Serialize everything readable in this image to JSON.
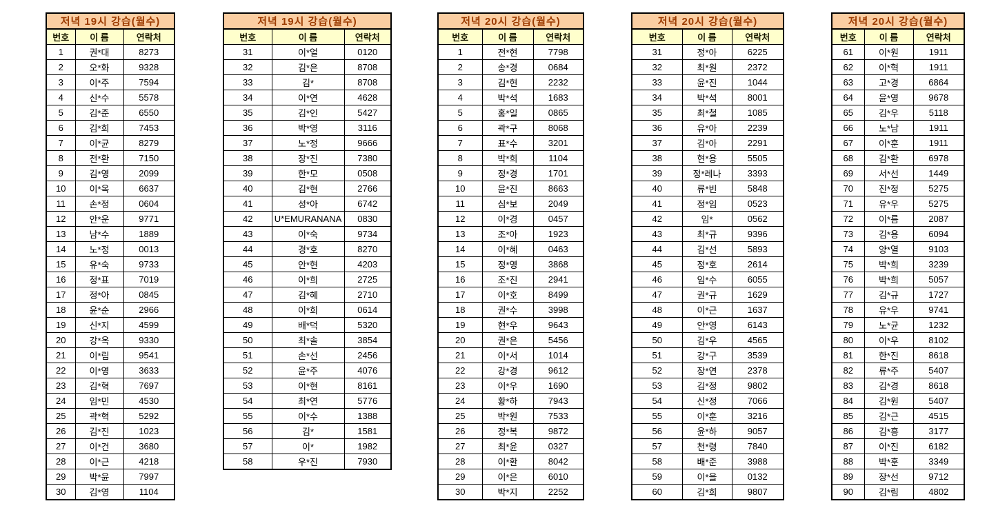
{
  "colors": {
    "title_bg": "#FBCEA2",
    "title_text": "#9C3B00",
    "header_bg": "#FFFFCC",
    "header_text": "#1A1A00",
    "cell_text": "#000000",
    "border": "#000000",
    "page_bg": "#FFFFFF"
  },
  "columns": [
    "번호",
    "이 름",
    "연락처"
  ],
  "tables": [
    {
      "title": "저녁 19시 강습(월수)",
      "rows": [
        [
          "1",
          "권*대",
          "8273"
        ],
        [
          "2",
          "오*화",
          "9328"
        ],
        [
          "3",
          "이*주",
          "7594"
        ],
        [
          "4",
          "신*수",
          "5578"
        ],
        [
          "5",
          "김*준",
          "6550"
        ],
        [
          "6",
          "김*희",
          "7453"
        ],
        [
          "7",
          "이*균",
          "8279"
        ],
        [
          "8",
          "전*환",
          "7150"
        ],
        [
          "9",
          "김*영",
          "2099"
        ],
        [
          "10",
          "이*옥",
          "6637"
        ],
        [
          "11",
          "손*정",
          "0604"
        ],
        [
          "12",
          "안*운",
          "9771"
        ],
        [
          "13",
          "남*수",
          "1889"
        ],
        [
          "14",
          "노*정",
          "0013"
        ],
        [
          "15",
          "유*숙",
          "9733"
        ],
        [
          "16",
          "정*표",
          "7019"
        ],
        [
          "17",
          "정*아",
          "0845"
        ],
        [
          "18",
          "윤*순",
          "2966"
        ],
        [
          "19",
          "신*지",
          "4599"
        ],
        [
          "20",
          "강*옥",
          "9330"
        ],
        [
          "21",
          "이*림",
          "9541"
        ],
        [
          "22",
          "이*영",
          "3633"
        ],
        [
          "23",
          "김*혁",
          "7697"
        ],
        [
          "24",
          "임*민",
          "4530"
        ],
        [
          "25",
          "곽*혁",
          "5292"
        ],
        [
          "26",
          "김*진",
          "1023"
        ],
        [
          "27",
          "이*건",
          "3680"
        ],
        [
          "28",
          "이*근",
          "4218"
        ],
        [
          "29",
          "박*윤",
          "7997"
        ],
        [
          "30",
          "김*영",
          "1104"
        ]
      ]
    },
    {
      "title": "저녁 19시 강습(월수)",
      "rows": [
        [
          "31",
          "이*얼",
          "0120"
        ],
        [
          "32",
          "김*은",
          "8708"
        ],
        [
          "33",
          "김*",
          "8708"
        ],
        [
          "34",
          "이*연",
          "4628"
        ],
        [
          "35",
          "김*인",
          "5427"
        ],
        [
          "36",
          "박*영",
          "3116"
        ],
        [
          "37",
          "노*정",
          "9666"
        ],
        [
          "38",
          "장*진",
          "7380"
        ],
        [
          "39",
          "한*모",
          "0508"
        ],
        [
          "40",
          "김*현",
          "2766"
        ],
        [
          "41",
          "성*아",
          "6742"
        ],
        [
          "42",
          "U*EMURANANA",
          "0830"
        ],
        [
          "43",
          "이*숙",
          "9734"
        ],
        [
          "44",
          "경*호",
          "8270"
        ],
        [
          "45",
          "안*현",
          "4203"
        ],
        [
          "46",
          "이*희",
          "2725"
        ],
        [
          "47",
          "김*혜",
          "2710"
        ],
        [
          "48",
          "이*희",
          "0614"
        ],
        [
          "49",
          "배*덕",
          "5320"
        ],
        [
          "50",
          "최*솔",
          "3854"
        ],
        [
          "51",
          "손*선",
          "2456"
        ],
        [
          "52",
          "윤*주",
          "4076"
        ],
        [
          "53",
          "이*현",
          "8161"
        ],
        [
          "54",
          "최*연",
          "5776"
        ],
        [
          "55",
          "이*수",
          "1388"
        ],
        [
          "56",
          "김*",
          "1581"
        ],
        [
          "57",
          "이*",
          "1982"
        ],
        [
          "58",
          "우*진",
          "7930"
        ]
      ]
    },
    {
      "title": "저녁 20시 강습(월수)",
      "rows": [
        [
          "1",
          "전*현",
          "7798"
        ],
        [
          "2",
          "송*경",
          "0684"
        ],
        [
          "3",
          "김*현",
          "2232"
        ],
        [
          "4",
          "박*석",
          "1683"
        ],
        [
          "5",
          "홍*일",
          "0865"
        ],
        [
          "6",
          "곽*구",
          "8068"
        ],
        [
          "7",
          "표*수",
          "3201"
        ],
        [
          "8",
          "박*희",
          "1104"
        ],
        [
          "9",
          "정*경",
          "1701"
        ],
        [
          "10",
          "윤*진",
          "8663"
        ],
        [
          "11",
          "심*보",
          "2049"
        ],
        [
          "12",
          "이*경",
          "0457"
        ],
        [
          "13",
          "조*아",
          "1923"
        ],
        [
          "14",
          "이*혜",
          "0463"
        ],
        [
          "15",
          "정*영",
          "3868"
        ],
        [
          "16",
          "조*진",
          "2941"
        ],
        [
          "17",
          "이*호",
          "8499"
        ],
        [
          "18",
          "권*수",
          "3998"
        ],
        [
          "19",
          "현*우",
          "9643"
        ],
        [
          "20",
          "권*은",
          "5456"
        ],
        [
          "21",
          "이*서",
          "1014"
        ],
        [
          "22",
          "강*경",
          "9612"
        ],
        [
          "23",
          "이*우",
          "1690"
        ],
        [
          "24",
          "황*하",
          "7943"
        ],
        [
          "25",
          "박*원",
          "7533"
        ],
        [
          "26",
          "정*복",
          "9872"
        ],
        [
          "27",
          "최*윤",
          "0327"
        ],
        [
          "28",
          "이*환",
          "8042"
        ],
        [
          "29",
          "이*은",
          "6010"
        ],
        [
          "30",
          "박*지",
          "2252"
        ]
      ]
    },
    {
      "title": "저녁 20시 강습(월수)",
      "rows": [
        [
          "31",
          "정*아",
          "6225"
        ],
        [
          "32",
          "최*원",
          "2372"
        ],
        [
          "33",
          "윤*진",
          "1044"
        ],
        [
          "34",
          "박*석",
          "8001"
        ],
        [
          "35",
          "최*철",
          "1085"
        ],
        [
          "36",
          "유*아",
          "2239"
        ],
        [
          "37",
          "김*아",
          "2291"
        ],
        [
          "38",
          "현*용",
          "5505"
        ],
        [
          "39",
          "정*레나",
          "3393"
        ],
        [
          "40",
          "류*빈",
          "5848"
        ],
        [
          "41",
          "정*임",
          "0523"
        ],
        [
          "42",
          "임*",
          "0562"
        ],
        [
          "43",
          "최*규",
          "9396"
        ],
        [
          "44",
          "김*선",
          "5893"
        ],
        [
          "45",
          "정*호",
          "2614"
        ],
        [
          "46",
          "임*수",
          "6055"
        ],
        [
          "47",
          "권*규",
          "1629"
        ],
        [
          "48",
          "이*근",
          "1637"
        ],
        [
          "49",
          "안*영",
          "6143"
        ],
        [
          "50",
          "김*우",
          "4565"
        ],
        [
          "51",
          "강*구",
          "3539"
        ],
        [
          "52",
          "장*연",
          "2378"
        ],
        [
          "53",
          "김*정",
          "9802"
        ],
        [
          "54",
          "신*정",
          "7066"
        ],
        [
          "55",
          "이*훈",
          "3216"
        ],
        [
          "56",
          "윤*하",
          "9057"
        ],
        [
          "57",
          "천*령",
          "7840"
        ],
        [
          "58",
          "배*준",
          "3988"
        ],
        [
          "59",
          "이*을",
          "0132"
        ],
        [
          "60",
          "김*희",
          "9807"
        ]
      ]
    },
    {
      "title": "저녁 20시 강습(월수)",
      "rows": [
        [
          "61",
          "이*원",
          "1911"
        ],
        [
          "62",
          "이*혁",
          "1911"
        ],
        [
          "63",
          "고*경",
          "6864"
        ],
        [
          "64",
          "윤*영",
          "9678"
        ],
        [
          "65",
          "김*우",
          "5118"
        ],
        [
          "66",
          "노*남",
          "1911"
        ],
        [
          "67",
          "이*훈",
          "1911"
        ],
        [
          "68",
          "김*환",
          "6978"
        ],
        [
          "69",
          "서*선",
          "1449"
        ],
        [
          "70",
          "진*정",
          "5275"
        ],
        [
          "71",
          "유*우",
          "5275"
        ],
        [
          "72",
          "이*름",
          "2087"
        ],
        [
          "73",
          "김*용",
          "6094"
        ],
        [
          "74",
          "양*열",
          "9103"
        ],
        [
          "75",
          "박*희",
          "3239"
        ],
        [
          "76",
          "박*희",
          "5057"
        ],
        [
          "77",
          "김*규",
          "1727"
        ],
        [
          "78",
          "유*우",
          "9741"
        ],
        [
          "79",
          "노*균",
          "1232"
        ],
        [
          "80",
          "이*우",
          "8102"
        ],
        [
          "81",
          "한*진",
          "8618"
        ],
        [
          "82",
          "류*주",
          "5407"
        ],
        [
          "83",
          "김*경",
          "8618"
        ],
        [
          "84",
          "김*원",
          "5407"
        ],
        [
          "85",
          "김*근",
          "4515"
        ],
        [
          "86",
          "김*흥",
          "3177"
        ],
        [
          "87",
          "이*진",
          "6182"
        ],
        [
          "88",
          "박*훈",
          "3349"
        ],
        [
          "89",
          "장*선",
          "9712"
        ],
        [
          "90",
          "김*림",
          "4802"
        ]
      ]
    }
  ]
}
